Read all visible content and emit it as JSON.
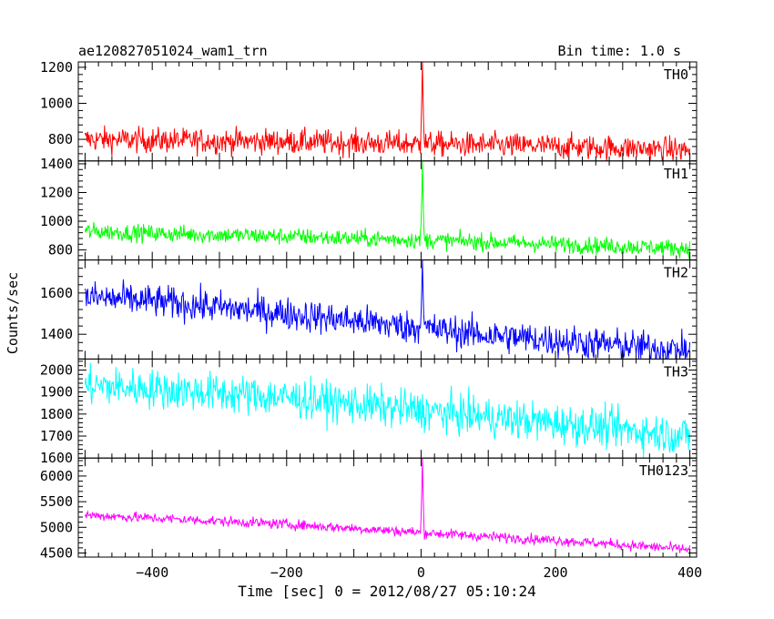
{
  "chart_data": {
    "type": "line",
    "title": "ae120827051024_wam1_trn",
    "subtitle": "Bin time: 1.0 s",
    "xlabel": "Time [sec] 0 = 2012/08/27 05:10:24",
    "ylabel": "Counts/sec",
    "xlim": [
      -510,
      410
    ],
    "x_ticks": [
      -400,
      -200,
      0,
      200,
      400
    ],
    "x_tick_labels": [
      "−400",
      "−200",
      "0",
      "200",
      "400"
    ],
    "x_range": [
      -500,
      400
    ],
    "grid": false,
    "panels": [
      {
        "label": "TH0",
        "color": "#ff0000",
        "ylim": [
          680,
          1230
        ],
        "yticks": [
          800,
          1000,
          1200
        ],
        "ytick_labels": [
          "800",
          "1000",
          "1200"
        ],
        "x": [
          -500,
          -400,
          -300,
          -200,
          -100,
          0,
          100,
          200,
          300,
          400
        ],
        "trend": [
          800,
          795,
          790,
          788,
          780,
          775,
          768,
          760,
          752,
          740
        ],
        "noise": 35,
        "peak": {
          "x": 2,
          "value": 1230
        }
      },
      {
        "label": "TH1",
        "color": "#00ff00",
        "ylim": [
          730,
          1420
        ],
        "yticks": [
          800,
          1000,
          1200,
          1400
        ],
        "ytick_labels": [
          "800",
          "1000",
          "1200",
          "1400"
        ],
        "x": [
          -500,
          -400,
          -300,
          -200,
          -100,
          0,
          100,
          200,
          300,
          400
        ],
        "trend": [
          930,
          915,
          905,
          895,
          880,
          870,
          855,
          840,
          825,
          810
        ],
        "noise": 30,
        "peak": {
          "x": 2,
          "value": 1420
        }
      },
      {
        "label": "TH2",
        "color": "#0000ff",
        "ylim": [
          1280,
          1760
        ],
        "yticks": [
          1400,
          1600
        ],
        "ytick_labels": [
          "1400",
          "1600"
        ],
        "x": [
          -500,
          -400,
          -300,
          -200,
          -100,
          0,
          100,
          200,
          300,
          400
        ],
        "trend": [
          1580,
          1560,
          1530,
          1500,
          1465,
          1430,
          1395,
          1370,
          1345,
          1320
        ],
        "noise": 40,
        "peak": {
          "x": 2,
          "value": 1760
        }
      },
      {
        "label": "TH3",
        "color": "#00ffff",
        "ylim": [
          1600,
          2050
        ],
        "yticks": [
          1600,
          1700,
          1800,
          1900,
          2000
        ],
        "ytick_labels": [
          "1600",
          "1700",
          "1800",
          "1900",
          "2000"
        ],
        "x": [
          -500,
          -400,
          -300,
          -200,
          -100,
          0,
          100,
          200,
          300,
          400
        ],
        "trend": [
          1930,
          1915,
          1895,
          1875,
          1845,
          1815,
          1785,
          1760,
          1730,
          1700
        ],
        "noise": 45,
        "peak": null
      },
      {
        "label": "TH0123",
        "color": "#ff00ff",
        "ylim": [
          4420,
          6350
        ],
        "yticks": [
          4500,
          5000,
          5500,
          6000
        ],
        "ytick_labels": [
          "4500",
          "5000",
          "5500",
          "6000"
        ],
        "x": [
          -500,
          -400,
          -300,
          -200,
          -100,
          0,
          100,
          200,
          300,
          400
        ],
        "trend": [
          5240,
          5180,
          5120,
          5060,
          4980,
          4900,
          4820,
          4750,
          4660,
          4570
        ],
        "noise": 50,
        "peak": {
          "x": 2,
          "value": 6350
        }
      }
    ]
  }
}
